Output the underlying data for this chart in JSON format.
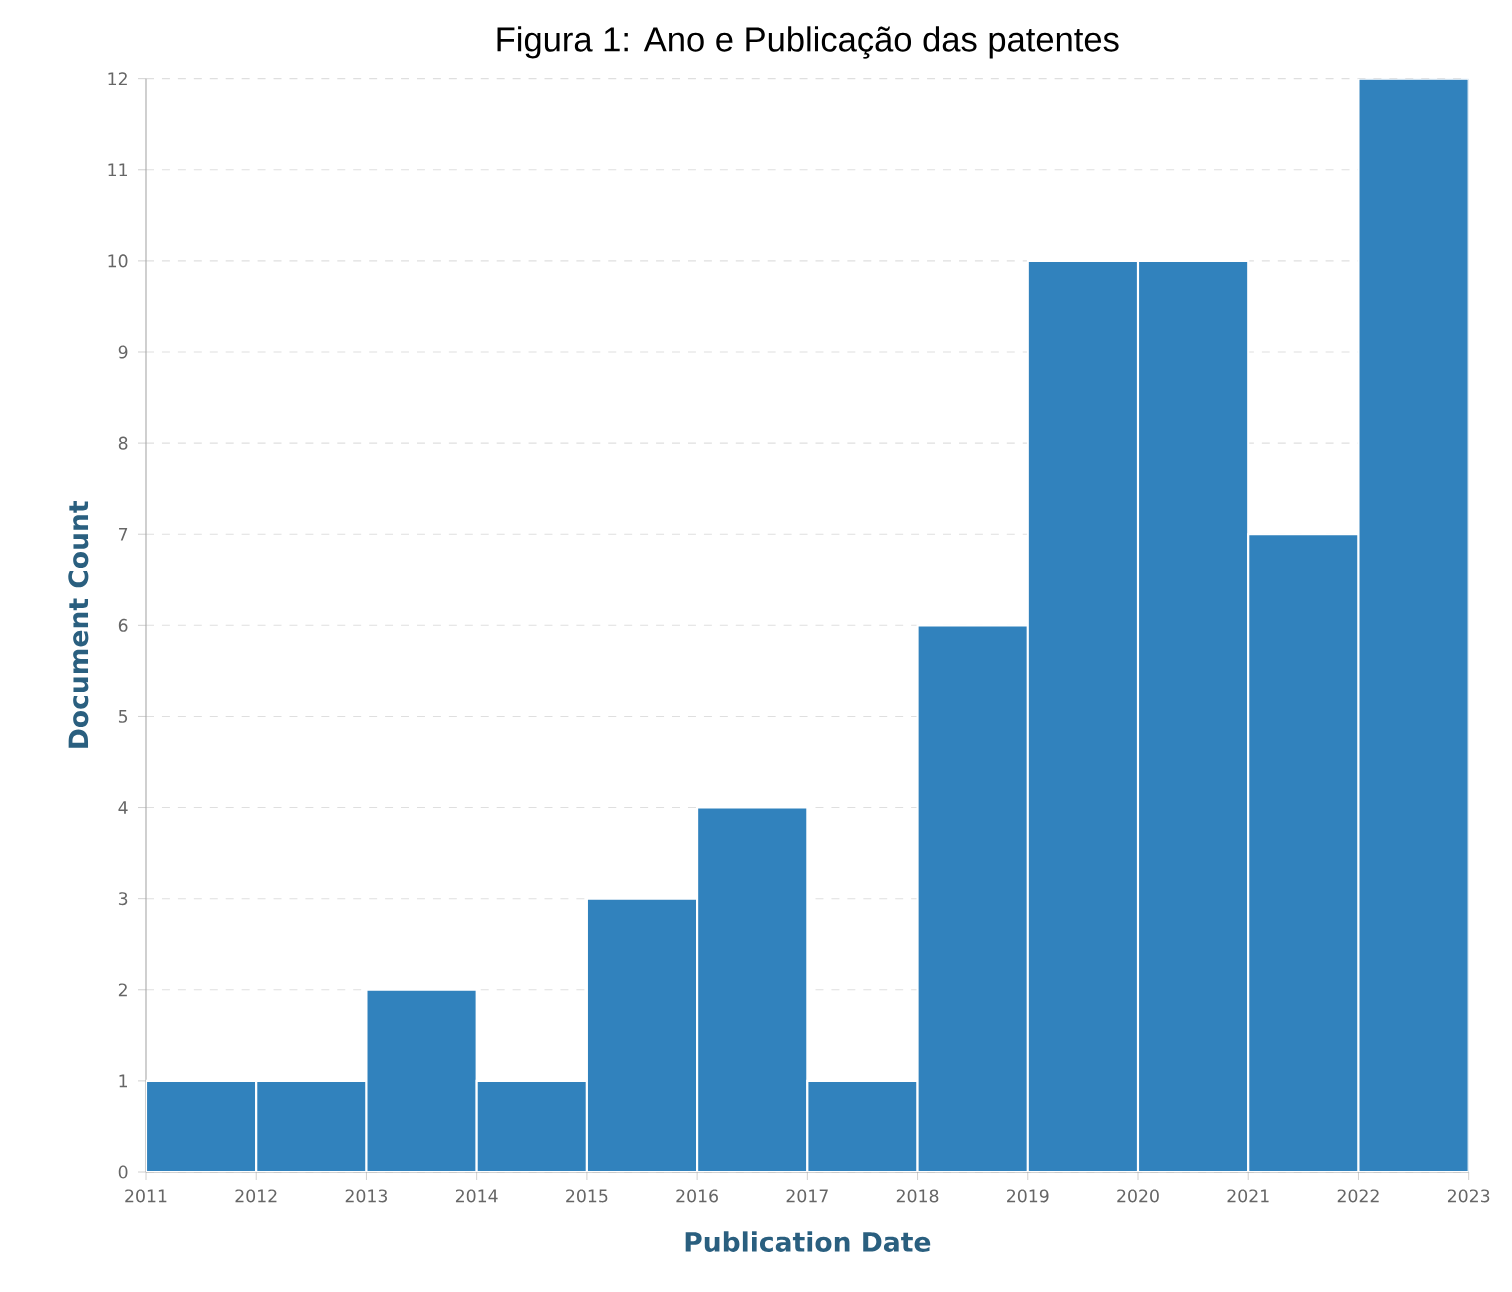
{
  "chart_data": {
    "type": "histogram",
    "title": "Figura 1: Ano e Publicação das patentes",
    "xlabel": "Publication Date",
    "ylabel": "Document Count",
    "bins": [
      2011,
      2012,
      2013,
      2014,
      2015,
      2016,
      2017,
      2018,
      2019,
      2020,
      2021,
      2022,
      2023
    ],
    "values": [
      1,
      1,
      2,
      1,
      3,
      4,
      1,
      6,
      10,
      10,
      7,
      12
    ],
    "color": "#3182bd",
    "xlim": [
      2011,
      2023
    ],
    "ylim": [
      0,
      12
    ],
    "xticks": [
      2011,
      2012,
      2013,
      2014,
      2015,
      2016,
      2017,
      2018,
      2019,
      2020,
      2021,
      2022,
      2023
    ],
    "yticks": [
      0,
      1,
      2,
      3,
      4,
      5,
      6,
      7,
      8,
      9,
      10,
      11,
      12
    ],
    "grid": "y"
  }
}
